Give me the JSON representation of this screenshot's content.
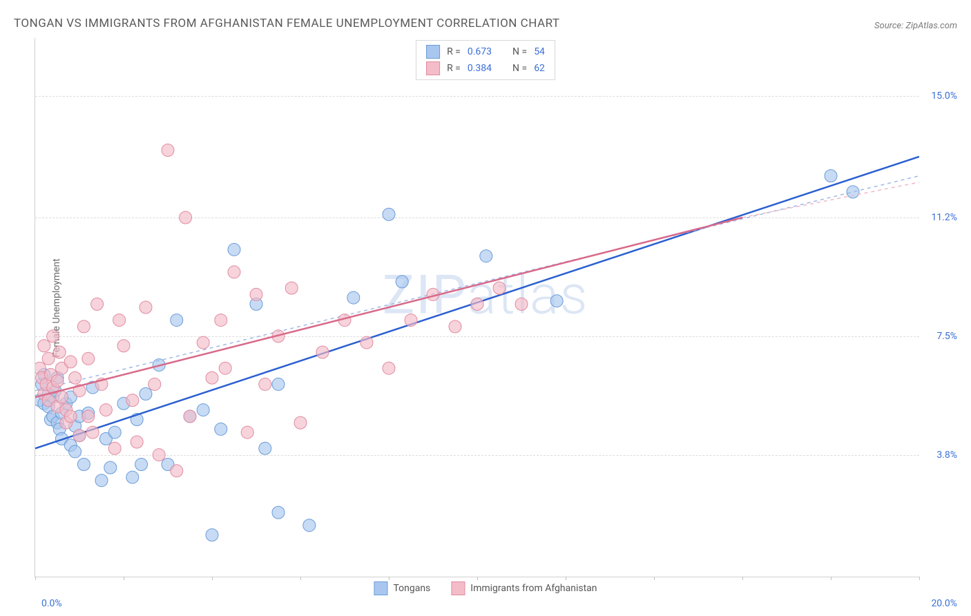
{
  "title": "TONGAN VS IMMIGRANTS FROM AFGHANISTAN FEMALE UNEMPLOYMENT CORRELATION CHART",
  "source_prefix": "Source: ",
  "source_site": "ZipAtlas.com",
  "ylabel": "Female Unemployment",
  "watermark_zip": "ZIP",
  "watermark_atlas": "atlas",
  "chart": {
    "type": "scatter",
    "xlim": [
      0,
      20
    ],
    "ylim": [
      0,
      16.8
    ],
    "x_axis_label_min": "0.0%",
    "x_axis_label_max": "20.0%",
    "x_tick_positions": [
      0,
      2,
      4,
      6,
      8,
      10,
      12,
      14,
      16,
      18,
      20
    ],
    "y_gridlines": [
      {
        "value": 3.8,
        "label": "3.8%"
      },
      {
        "value": 7.5,
        "label": "7.5%"
      },
      {
        "value": 11.2,
        "label": "11.2%"
      },
      {
        "value": 15.0,
        "label": "15.0%"
      }
    ],
    "background_color": "#ffffff",
    "grid_color": "#dcdcdc",
    "series": [
      {
        "id": "tongans",
        "label": "Tongans",
        "legend_R": "0.673",
        "legend_N": "54",
        "marker_fill": "#a9c7ee",
        "marker_stroke": "#6a9bd8",
        "marker_opacity": 0.65,
        "marker_radius": 9,
        "line_color": "#2a5fd0",
        "line_width": 2.5,
        "dash_color": "#9fb8e8",
        "trend_line": {
          "x1": 0,
          "y1": 4.0,
          "x2": 20,
          "y2": 13.1
        },
        "trend_dash_upper": {
          "x1": 0,
          "y1": 5.8,
          "x2": 20,
          "y2": 12.5
        },
        "points": [
          [
            0.1,
            5.5
          ],
          [
            0.15,
            6.0
          ],
          [
            0.2,
            5.4
          ],
          [
            0.2,
            6.3
          ],
          [
            0.3,
            5.3
          ],
          [
            0.3,
            5.7
          ],
          [
            0.35,
            4.9
          ],
          [
            0.4,
            5.0
          ],
          [
            0.4,
            5.6
          ],
          [
            0.45,
            5.8
          ],
          [
            0.5,
            4.8
          ],
          [
            0.5,
            6.2
          ],
          [
            0.55,
            4.6
          ],
          [
            0.6,
            5.1
          ],
          [
            0.6,
            4.3
          ],
          [
            0.7,
            5.4
          ],
          [
            0.8,
            4.1
          ],
          [
            0.8,
            5.6
          ],
          [
            0.9,
            4.7
          ],
          [
            0.9,
            3.9
          ],
          [
            1.0,
            5.0
          ],
          [
            1.0,
            4.4
          ],
          [
            1.1,
            3.5
          ],
          [
            1.2,
            5.1
          ],
          [
            1.3,
            5.9
          ],
          [
            1.5,
            3.0
          ],
          [
            1.6,
            4.3
          ],
          [
            1.7,
            3.4
          ],
          [
            1.8,
            4.5
          ],
          [
            2.0,
            5.4
          ],
          [
            2.2,
            3.1
          ],
          [
            2.3,
            4.9
          ],
          [
            2.4,
            3.5
          ],
          [
            2.5,
            5.7
          ],
          [
            2.8,
            6.6
          ],
          [
            3.0,
            3.5
          ],
          [
            3.2,
            8.0
          ],
          [
            3.5,
            5.0
          ],
          [
            3.8,
            5.2
          ],
          [
            4.0,
            1.3
          ],
          [
            4.2,
            4.6
          ],
          [
            4.5,
            10.2
          ],
          [
            5.0,
            8.5
          ],
          [
            5.2,
            4.0
          ],
          [
            5.5,
            6.0
          ],
          [
            5.5,
            2.0
          ],
          [
            6.2,
            1.6
          ],
          [
            7.2,
            8.7
          ],
          [
            8.0,
            11.3
          ],
          [
            8.3,
            9.2
          ],
          [
            10.2,
            10.0
          ],
          [
            11.8,
            8.6
          ],
          [
            18.0,
            12.5
          ],
          [
            18.5,
            12.0
          ]
        ]
      },
      {
        "id": "afghan",
        "label": "Immigrants from Afghanistan",
        "legend_R": "0.384",
        "legend_N": "62",
        "marker_fill": "#f3bcc8",
        "marker_stroke": "#e08ba0",
        "marker_opacity": 0.65,
        "marker_radius": 9,
        "line_color": "#d86a8a",
        "line_width": 2.5,
        "dash_color": "#f0b8c6",
        "trend_line": {
          "x1": 0,
          "y1": 5.6,
          "x2": 16,
          "y2": 11.2
        },
        "trend_dash_upper": {
          "x1": 16,
          "y1": 11.2,
          "x2": 20,
          "y2": 12.3
        },
        "points": [
          [
            0.1,
            6.5
          ],
          [
            0.15,
            6.2
          ],
          [
            0.2,
            5.7
          ],
          [
            0.2,
            7.2
          ],
          [
            0.25,
            6.0
          ],
          [
            0.3,
            6.8
          ],
          [
            0.3,
            5.5
          ],
          [
            0.35,
            6.3
          ],
          [
            0.4,
            5.9
          ],
          [
            0.4,
            7.5
          ],
          [
            0.5,
            5.3
          ],
          [
            0.5,
            6.1
          ],
          [
            0.55,
            7.0
          ],
          [
            0.6,
            5.6
          ],
          [
            0.6,
            6.5
          ],
          [
            0.7,
            5.2
          ],
          [
            0.7,
            4.8
          ],
          [
            0.8,
            6.7
          ],
          [
            0.8,
            5.0
          ],
          [
            0.9,
            6.2
          ],
          [
            1.0,
            4.4
          ],
          [
            1.0,
            5.8
          ],
          [
            1.1,
            7.8
          ],
          [
            1.2,
            5.0
          ],
          [
            1.2,
            6.8
          ],
          [
            1.3,
            4.5
          ],
          [
            1.4,
            8.5
          ],
          [
            1.5,
            6.0
          ],
          [
            1.6,
            5.2
          ],
          [
            1.8,
            4.0
          ],
          [
            1.9,
            8.0
          ],
          [
            2.0,
            7.2
          ],
          [
            2.2,
            5.5
          ],
          [
            2.3,
            4.2
          ],
          [
            2.5,
            8.4
          ],
          [
            2.7,
            6.0
          ],
          [
            2.8,
            3.8
          ],
          [
            3.0,
            13.3
          ],
          [
            3.2,
            3.3
          ],
          [
            3.4,
            11.2
          ],
          [
            3.5,
            5.0
          ],
          [
            3.8,
            7.3
          ],
          [
            4.0,
            6.2
          ],
          [
            4.2,
            8.0
          ],
          [
            4.3,
            6.5
          ],
          [
            4.5,
            9.5
          ],
          [
            4.8,
            4.5
          ],
          [
            5.0,
            8.8
          ],
          [
            5.2,
            6.0
          ],
          [
            5.5,
            7.5
          ],
          [
            5.8,
            9.0
          ],
          [
            6.0,
            4.8
          ],
          [
            6.5,
            7.0
          ],
          [
            7.0,
            8.0
          ],
          [
            7.5,
            7.3
          ],
          [
            8.0,
            6.5
          ],
          [
            8.5,
            8.0
          ],
          [
            9.0,
            8.8
          ],
          [
            9.5,
            7.8
          ],
          [
            10.0,
            8.5
          ],
          [
            10.5,
            9.0
          ],
          [
            11.0,
            8.5
          ]
        ]
      }
    ],
    "legend_top_labels": {
      "R": "R =",
      "N": "N ="
    }
  }
}
